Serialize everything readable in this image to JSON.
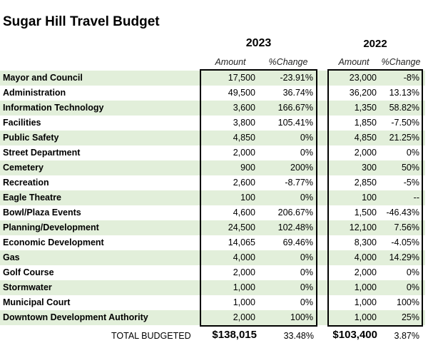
{
  "title": "Sugar Hill Travel Budget",
  "years": {
    "current": "2023",
    "prior": "2022"
  },
  "subheaders": {
    "amount": "Amount",
    "change": "%Change"
  },
  "rows": [
    {
      "label": "Mayor and Council",
      "a23": "17,500",
      "c23": "-23.91%",
      "a22": "23,000",
      "c22": "-8%"
    },
    {
      "label": "Administration",
      "a23": "49,500",
      "c23": "36.74%",
      "a22": "36,200",
      "c22": "13.13%"
    },
    {
      "label": "Information Technology",
      "a23": "3,600",
      "c23": "166.67%",
      "a22": "1,350",
      "c22": "58.82%"
    },
    {
      "label": "Facilities",
      "a23": "3,800",
      "c23": "105.41%",
      "a22": "1,850",
      "c22": "-7.50%"
    },
    {
      "label": "Public Safety",
      "a23": "4,850",
      "c23": "0%",
      "a22": "4,850",
      "c22": "21.25%"
    },
    {
      "label": "Street Department",
      "a23": "2,000",
      "c23": "0%",
      "a22": "2,000",
      "c22": "0%"
    },
    {
      "label": "Cemetery",
      "a23": "900",
      "c23": "200%",
      "a22": "300",
      "c22": "50%"
    },
    {
      "label": "Recreation",
      "a23": "2,600",
      "c23": "-8.77%",
      "a22": "2,850",
      "c22": "-5%"
    },
    {
      "label": "Eagle Theatre",
      "a23": "100",
      "c23": "0%",
      "a22": "100",
      "c22": "--"
    },
    {
      "label": "Bowl/Plaza Events",
      "a23": "4,600",
      "c23": "206.67%",
      "a22": "1,500",
      "c22": "-46.43%"
    },
    {
      "label": "Planning/Development",
      "a23": "24,500",
      "c23": "102.48%",
      "a22": "12,100",
      "c22": "7.56%"
    },
    {
      "label": "Economic Development",
      "a23": "14,065",
      "c23": "69.46%",
      "a22": "8,300",
      "c22": "-4.05%"
    },
    {
      "label": "Gas",
      "a23": "4,000",
      "c23": "0%",
      "a22": "4,000",
      "c22": "14.29%"
    },
    {
      "label": "Golf Course",
      "a23": "2,000",
      "c23": "0%",
      "a22": "2,000",
      "c22": "0%"
    },
    {
      "label": "Stormwater",
      "a23": "1,000",
      "c23": "0%",
      "a22": "1,000",
      "c22": "0%"
    },
    {
      "label": "Municipal Court",
      "a23": "1,000",
      "c23": "0%",
      "a22": "1,000",
      "c22": "100%"
    },
    {
      "label": "Downtown Development Authority",
      "a23": "2,000",
      "c23": "100%",
      "a22": "1,000",
      "c22": "25%"
    }
  ],
  "total": {
    "label": "TOTAL BUDGETED",
    "a23": "$138,015",
    "c23": "33.48%",
    "a22": "$103,400",
    "c22": "3.87%"
  },
  "colors": {
    "band": "#e2efda",
    "border": "#000000"
  }
}
